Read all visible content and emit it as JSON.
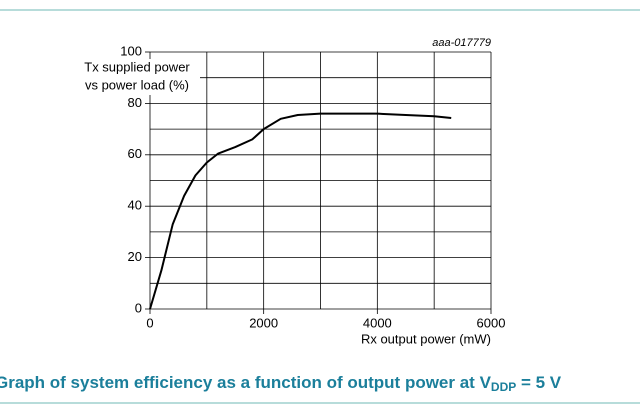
{
  "chart_data": {
    "type": "line",
    "code": "aaa-017779",
    "y_label_lines": [
      "Tx supplied power",
      "vs power load (%)"
    ],
    "x_label": "Rx output power (mW)",
    "caption": {
      "main": "Graph of system efficiency as a function of output power at V",
      "sub": "DDP",
      "end": " = 5 V"
    },
    "x": [
      0,
      200,
      400,
      600,
      800,
      1000,
      1200,
      1500,
      1800,
      2000,
      2300,
      2600,
      3000,
      3500,
      4000,
      4500,
      5000,
      5300
    ],
    "values": [
      0,
      15,
      33,
      44,
      52,
      57,
      60.5,
      63,
      66,
      70,
      74,
      75.5,
      76,
      76,
      76,
      75.5,
      75,
      74.3
    ],
    "color": "#000000",
    "xlim": [
      0,
      6000
    ],
    "xticks": [
      0,
      2000,
      4000,
      6000
    ],
    "minor_xticks": [
      1000,
      3000,
      5000
    ],
    "ylim": [
      0,
      100
    ],
    "yticks": [
      0,
      20,
      40,
      60,
      80,
      100
    ],
    "minor_yticks": [
      10,
      30,
      50,
      70,
      90
    ],
    "grid": true
  }
}
